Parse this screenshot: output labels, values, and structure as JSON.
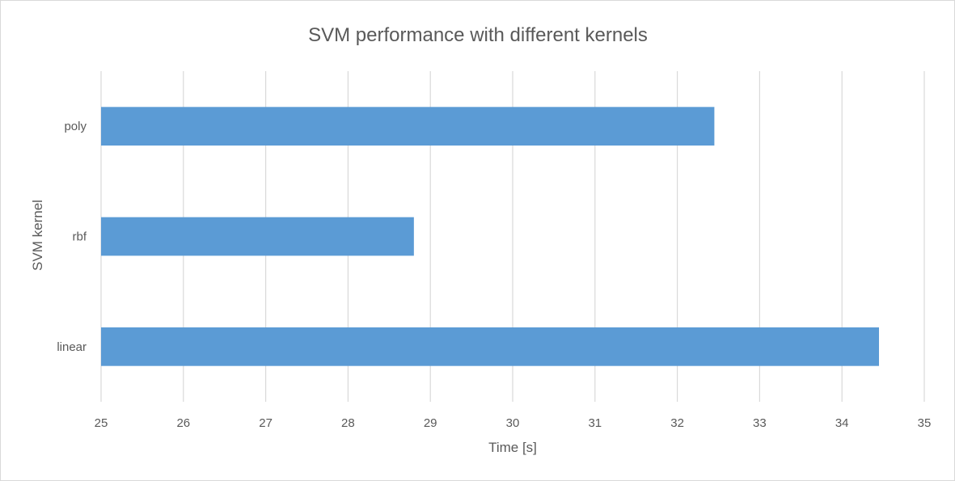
{
  "chart_data": {
    "type": "bar",
    "orientation": "horizontal",
    "title": "SVM performance with different kernels",
    "xlabel": "Time [s]",
    "ylabel": "SVM kernel",
    "categories": [
      "linear",
      "rbf",
      "poly"
    ],
    "values": [
      34.45,
      28.8,
      32.45
    ],
    "xlim": [
      25,
      35
    ],
    "xticks": [
      25,
      26,
      27,
      28,
      29,
      30,
      31,
      32,
      33,
      34,
      35
    ],
    "grid": "vertical",
    "legend": "none",
    "bar_color": "#5b9bd5",
    "gridline_color": "#d9d9d9",
    "text_color": "#595959"
  }
}
